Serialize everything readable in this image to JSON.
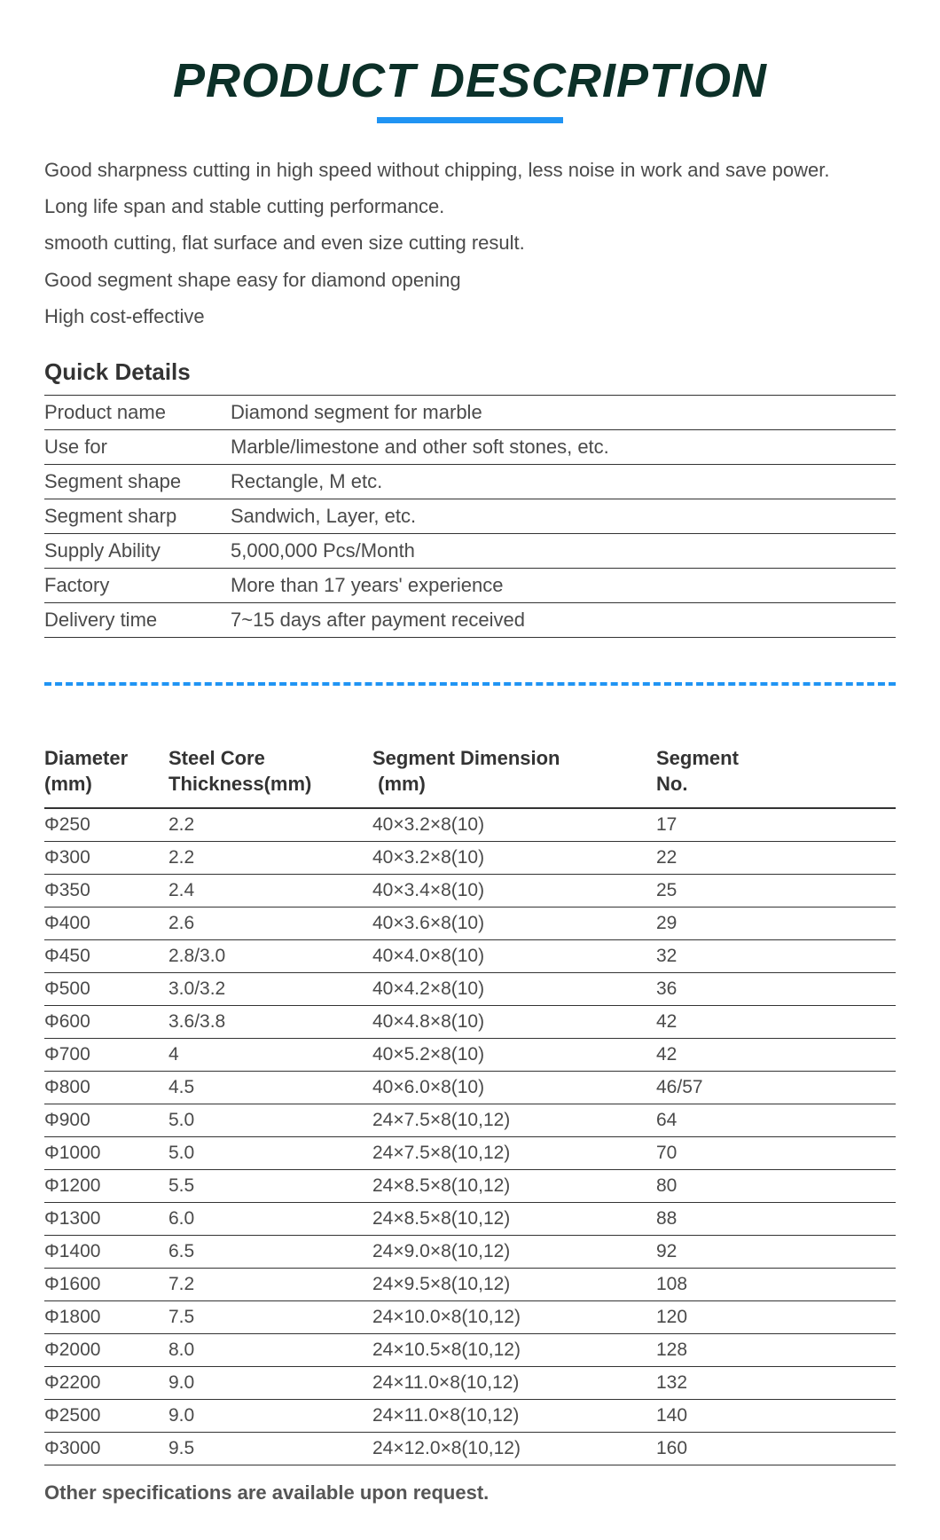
{
  "title": "PRODUCT DESCRIPTION",
  "description": [
    "Good sharpness cutting in high speed without chipping, less noise in work and save power.",
    "Long life span and stable cutting performance.",
    "smooth cutting, flat surface and even size cutting result.",
    "Good segment shape easy for diamond opening",
    "High cost-effective"
  ],
  "quick_details_heading": "Quick Details",
  "quick_details": [
    {
      "label": "Product name",
      "value": "Diamond segment for marble"
    },
    {
      "label": "Use for",
      "value": "Marble/limestone and other soft stones, etc."
    },
    {
      "label": "Segment shape",
      "value": "Rectangle, M etc."
    },
    {
      "label": "Segment sharp",
      "value": "Sandwich, Layer, etc."
    },
    {
      "label": "Supply Ability",
      "value": "5,000,000 Pcs/Month"
    },
    {
      "label": "Factory",
      "value": "More than 17 years' experience"
    },
    {
      "label": "Delivery time",
      "value": "7~15 days after payment received"
    }
  ],
  "spec_headers": {
    "col1": "Diameter (mm)",
    "col2": "Steel Core Thickness(mm)",
    "col3": "Segment Dimension  (mm)",
    "col4": "Segment No."
  },
  "spec_rows": [
    {
      "diameter": "Φ250",
      "thickness": "2.2",
      "dimension": "40×3.2×8(10)",
      "segno": "17"
    },
    {
      "diameter": "Φ300",
      "thickness": "2.2",
      "dimension": "40×3.2×8(10)",
      "segno": "22"
    },
    {
      "diameter": "Φ350",
      "thickness": "2.4",
      "dimension": "40×3.4×8(10)",
      "segno": "25"
    },
    {
      "diameter": "Φ400",
      "thickness": "2.6",
      "dimension": "40×3.6×8(10)",
      "segno": "29"
    },
    {
      "diameter": "Φ450",
      "thickness": "2.8/3.0",
      "dimension": "40×4.0×8(10)",
      "segno": "32"
    },
    {
      "diameter": "Φ500",
      "thickness": "3.0/3.2",
      "dimension": "40×4.2×8(10)",
      "segno": "36"
    },
    {
      "diameter": "Φ600",
      "thickness": "3.6/3.8",
      "dimension": "40×4.8×8(10)",
      "segno": "42"
    },
    {
      "diameter": "Φ700",
      "thickness": "4",
      "dimension": "40×5.2×8(10)",
      "segno": "42"
    },
    {
      "diameter": "Φ800",
      "thickness": "4.5",
      "dimension": "40×6.0×8(10)",
      "segno": "46/57"
    },
    {
      "diameter": "Φ900",
      "thickness": "5.0",
      "dimension": "24×7.5×8(10,12)",
      "segno": "64"
    },
    {
      "diameter": "Φ1000",
      "thickness": "5.0",
      "dimension": "24×7.5×8(10,12)",
      "segno": "70"
    },
    {
      "diameter": "Φ1200",
      "thickness": "5.5",
      "dimension": "24×8.5×8(10,12)",
      "segno": "80"
    },
    {
      "diameter": "Φ1300",
      "thickness": "6.0",
      "dimension": "24×8.5×8(10,12)",
      "segno": "88"
    },
    {
      "diameter": "Φ1400",
      "thickness": "6.5",
      "dimension": "24×9.0×8(10,12)",
      "segno": "92"
    },
    {
      "diameter": "Φ1600",
      "thickness": "7.2",
      "dimension": "24×9.5×8(10,12)",
      "segno": "108"
    },
    {
      "diameter": "Φ1800",
      "thickness": "7.5",
      "dimension": "24×10.0×8(10,12)",
      "segno": "120"
    },
    {
      "diameter": "Φ2000",
      "thickness": "8.0",
      "dimension": "24×10.5×8(10,12)",
      "segno": "128"
    },
    {
      "diameter": "Φ2200",
      "thickness": "9.0",
      "dimension": "24×11.0×8(10,12)",
      "segno": "132"
    },
    {
      "diameter": "Φ2500",
      "thickness": "9.0",
      "dimension": "24×11.0×8(10,12)",
      "segno": "140"
    },
    {
      "diameter": "Φ3000",
      "thickness": "9.5",
      "dimension": "24×12.0×8(10,12)",
      "segno": "160"
    }
  ],
  "footer_note": "Other specifications are available upon request.",
  "colors": {
    "title_color": "#0c3028",
    "accent_blue": "#2094f3",
    "text_color": "#4a4a4a",
    "border_color": "#333333"
  }
}
